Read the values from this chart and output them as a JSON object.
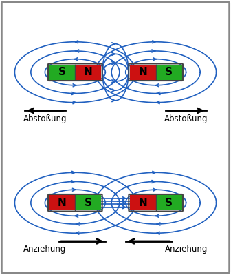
{
  "bg_color": "#ffffff",
  "border_color": "#888888",
  "magnet_green": "#22aa22",
  "magnet_red": "#cc1111",
  "magnet_text_color": "#000000",
  "field_line_color": "#2060c0",
  "text_color": "#000000",
  "top_label_left": "Abstoßung",
  "top_label_right": "Abstoßung",
  "bottom_label_left": "Anziehung",
  "bottom_label_right": "Anziehung"
}
